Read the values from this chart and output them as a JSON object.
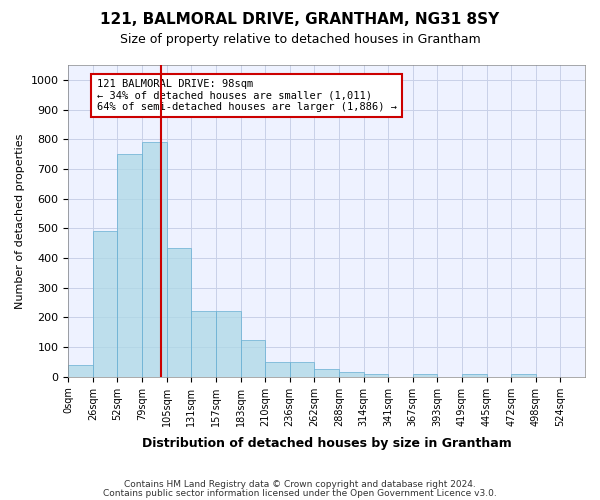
{
  "title": "121, BALMORAL DRIVE, GRANTHAM, NG31 8SY",
  "subtitle": "Size of property relative to detached houses in Grantham",
  "xlabel": "Distribution of detached houses by size in Grantham",
  "ylabel": "Number of detached properties",
  "bar_color": "#add8e6",
  "bar_edgecolor": "#6ab0d4",
  "bar_alpha": 0.75,
  "bins": [
    "0sqm",
    "26sqm",
    "52sqm",
    "79sqm",
    "105sqm",
    "131sqm",
    "157sqm",
    "183sqm",
    "210sqm",
    "236sqm",
    "262sqm",
    "288sqm",
    "314sqm",
    "341sqm",
    "367sqm",
    "393sqm",
    "419sqm",
    "445sqm",
    "472sqm",
    "498sqm",
    "524sqm"
  ],
  "values": [
    40,
    490,
    750,
    790,
    435,
    220,
    220,
    125,
    50,
    50,
    25,
    15,
    10,
    0,
    10,
    0,
    8,
    0,
    8,
    0,
    0
  ],
  "vline_pos": 3.769,
  "vline_color": "#cc0000",
  "annotation_text": "121 BALMORAL DRIVE: 98sqm\n← 34% of detached houses are smaller (1,011)\n64% of semi-detached houses are larger (1,886) →",
  "ylim": [
    0,
    1050
  ],
  "yticks": [
    0,
    100,
    200,
    300,
    400,
    500,
    600,
    700,
    800,
    900,
    1000
  ],
  "footer_line1": "Contains HM Land Registry data © Crown copyright and database right 2024.",
  "footer_line2": "Contains public sector information licensed under the Open Government Licence v3.0.",
  "background_color": "#eef2ff",
  "grid_color": "#c8d0e8"
}
